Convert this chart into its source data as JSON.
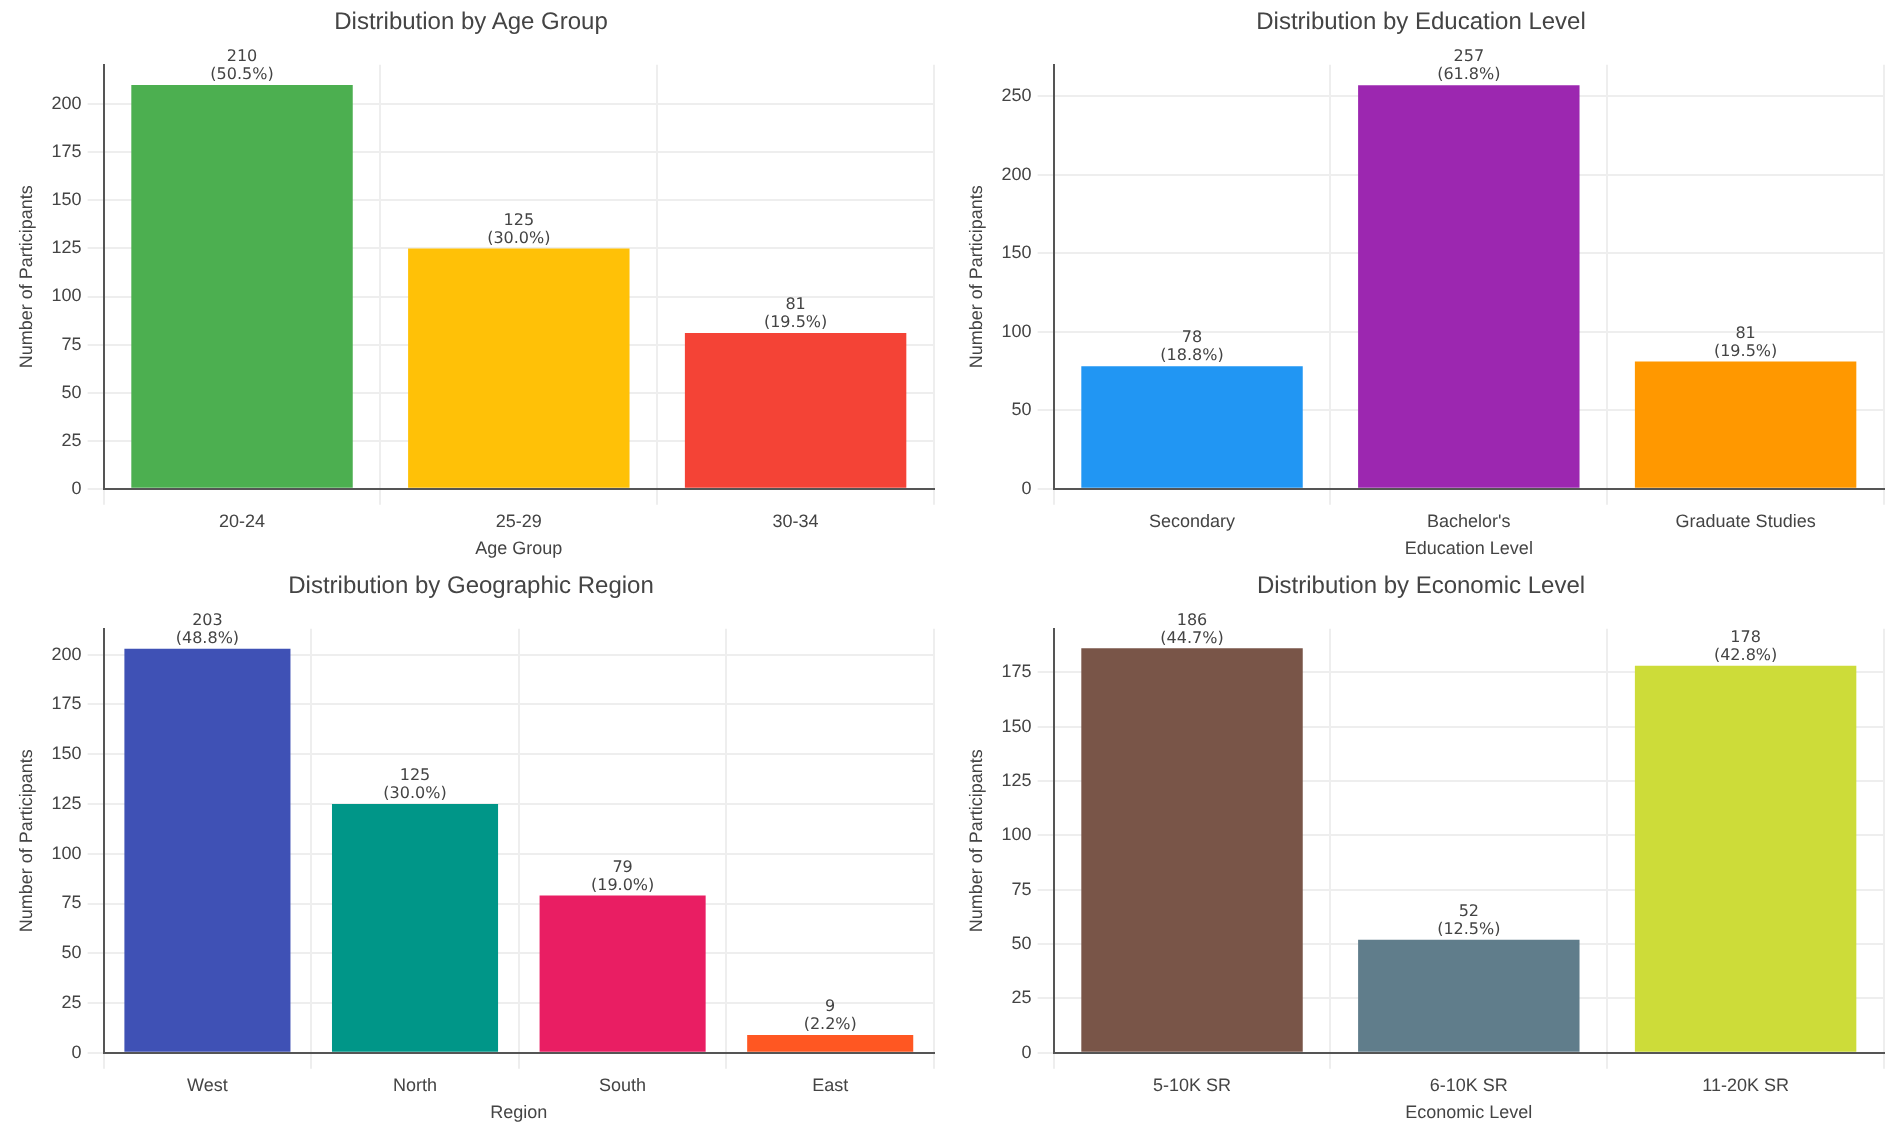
{
  "chart_data": [
    {
      "type": "bar",
      "title": "Distribution by Age Group",
      "xlabel": "Age Group",
      "ylabel": "Number of Participants",
      "categories": [
        "20-24",
        "25-29",
        "30-34"
      ],
      "values": [
        210,
        125,
        81
      ],
      "colors": [
        "#4caf50",
        "#ffc107",
        "#f44336"
      ],
      "value_labels": [
        "210\n(50.5%)",
        "125\n(30.0%)",
        "81\n(19.5%)"
      ],
      "ylim": [
        0,
        220.5
      ],
      "yticks": [
        0,
        25,
        50,
        75,
        100,
        125,
        150,
        175,
        200
      ],
      "grid": true
    },
    {
      "type": "bar",
      "title": "Distribution by Education Level",
      "xlabel": "Education Level",
      "ylabel": "Number of Participants",
      "categories": [
        "Secondary",
        "Bachelor's",
        "Graduate Studies"
      ],
      "values": [
        78,
        257,
        81
      ],
      "colors": [
        "#2196f3",
        "#9c27b0",
        "#ff9800"
      ],
      "value_labels": [
        "78\n(18.8%)",
        "257\n(61.8%)",
        "81\n(19.5%)"
      ],
      "ylim": [
        0,
        270
      ],
      "yticks": [
        0,
        50,
        100,
        150,
        200,
        250
      ],
      "grid": true
    },
    {
      "type": "bar",
      "title": "Distribution by Geographic Region",
      "xlabel": "Region",
      "ylabel": "Number of Participants",
      "categories": [
        "West",
        "North",
        "South",
        "East"
      ],
      "values": [
        203,
        125,
        79,
        9
      ],
      "colors": [
        "#3f51b5",
        "#009688",
        "#e91e63",
        "#ff5722"
      ],
      "value_labels": [
        "203\n(48.8%)",
        "125\n(30.0%)",
        "79\n(19.0%)",
        "9\n(2.2%)"
      ],
      "ylim": [
        0,
        213
      ],
      "yticks": [
        0,
        25,
        50,
        75,
        100,
        125,
        150,
        175,
        200
      ],
      "grid": true
    },
    {
      "type": "bar",
      "title": "Distribution by Economic Level",
      "xlabel": "Economic Level",
      "ylabel": "Number of Participants",
      "categories": [
        "5-10K SR",
        "6-10K SR",
        "11-20K SR"
      ],
      "values": [
        186,
        52,
        178
      ],
      "colors": [
        "#795548",
        "#607d8b",
        "#cddc39"
      ],
      "value_labels": [
        "186\n(44.7%)",
        "52\n(12.5%)",
        "178\n(42.8%)"
      ],
      "ylim": [
        0,
        195
      ],
      "yticks": [
        0,
        25,
        50,
        75,
        100,
        125,
        150,
        175
      ],
      "grid": true
    }
  ]
}
